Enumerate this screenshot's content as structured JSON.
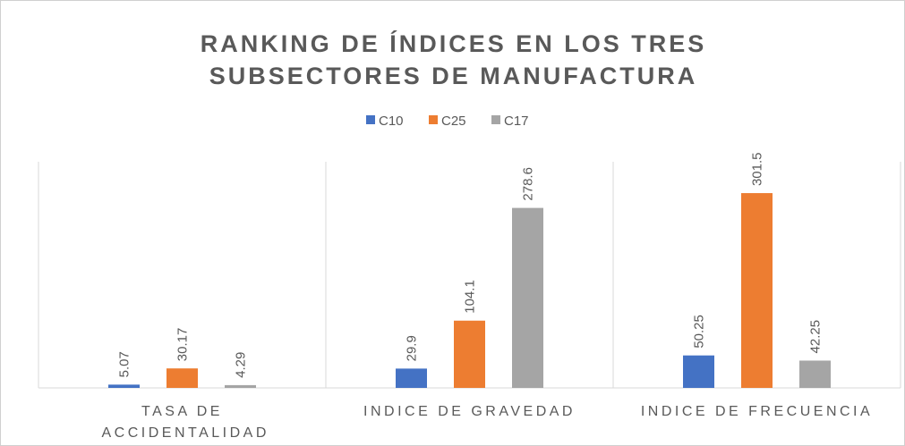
{
  "chart_data": {
    "type": "bar",
    "title": "RANKING DE ÍNDICES EN LOS TRES SUBSECTORES DE MANUFACTURA",
    "categories": [
      "TASA DE ACCIDENTALIDAD",
      "INDICE DE GRAVEDAD",
      "INDICE DE FRECUENCIA"
    ],
    "series": [
      {
        "name": "C10",
        "color": "#4472c4",
        "values": [
          5.07,
          29.9,
          50.25
        ]
      },
      {
        "name": "C25",
        "color": "#ed7d31",
        "values": [
          30.17,
          104.1,
          301.5
        ]
      },
      {
        "name": "C17",
        "color": "#a5a5a5",
        "values": [
          4.29,
          278.6,
          42.25
        ]
      }
    ],
    "ylim": [
      0,
      350
    ],
    "legend": "top"
  }
}
